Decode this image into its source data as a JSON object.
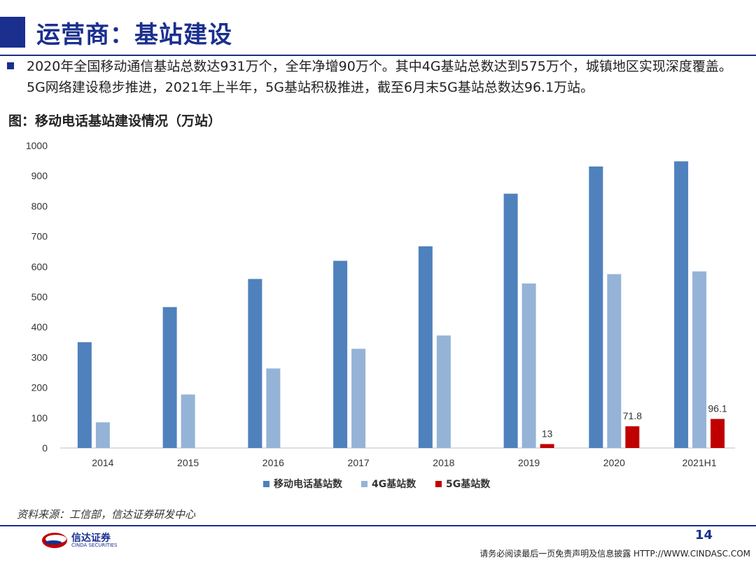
{
  "header": {
    "title": "运营商：基站建设"
  },
  "bullet": {
    "text": "2020年全国移动通信基站总数达931万个，全年净增90万个。其中4G基站总数达到575万个，城镇地区实现深度覆盖。5G网络建设稳步推进，2021年上半年，5G基站积极推进，截至6月末5G基站总数达96.1万站。"
  },
  "figure": {
    "title": "图：移动电话基站建设情况（万站）",
    "source": "资料来源：工信部，信达证券研发中心"
  },
  "footer": {
    "logo_name": "信达证券",
    "logo_sub": "CINDA SECURITIES",
    "page_number": "14",
    "disclaimer": "请务必阅读最后一页免责声明及信息披露 HTTP://WWW.CINDASC.COM"
  },
  "colors": {
    "primary": "#1a2f8e",
    "series_total": "#4f81bd",
    "series_4g": "#95b3d7",
    "series_5g": "#c00000"
  },
  "chart_data": {
    "type": "bar",
    "title": "",
    "categories": [
      "2014",
      "2015",
      "2016",
      "2017",
      "2018",
      "2019",
      "2020",
      "2021H1"
    ],
    "series": [
      {
        "name": "移动电话基站数",
        "color": "#4f81bd",
        "values": [
          350,
          466,
          559,
          619,
          667,
          841,
          931,
          948
        ]
      },
      {
        "name": "4G基站数",
        "color": "#95b3d7",
        "values": [
          85,
          177,
          263,
          328,
          372,
          544,
          575,
          584
        ]
      },
      {
        "name": "5G基站数",
        "color": "#c00000",
        "values": [
          null,
          null,
          null,
          null,
          null,
          13,
          71.8,
          96.1
        ],
        "labels": [
          "",
          "",
          "",
          "",
          "",
          "13",
          "71.8",
          "96.1"
        ]
      }
    ],
    "ylim": [
      0,
      1000
    ],
    "yticks": [
      0,
      100,
      200,
      300,
      400,
      500,
      600,
      700,
      800,
      900,
      1000
    ],
    "grid": false,
    "legend": "bottom"
  }
}
